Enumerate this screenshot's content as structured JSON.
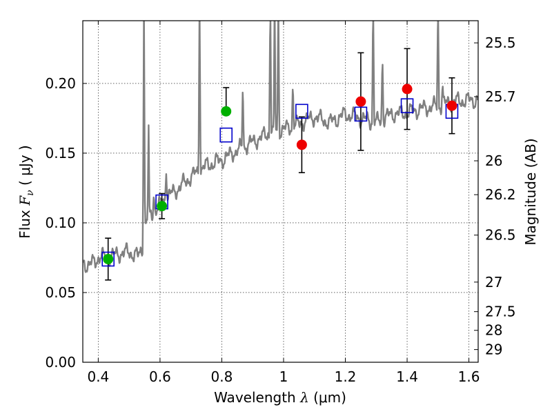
{
  "chart_data": {
    "type": "scatter",
    "xlabel": {
      "prefix": "Wavelength ",
      "symbol": "λ",
      "unit": " (μm)"
    },
    "ylabel": {
      "prefix": "Flux ",
      "symbol": "F",
      "subscript": "ν",
      "unit": " ( μJy )"
    },
    "y2label": "Magnitude (AB)",
    "xlim": [
      0.35,
      1.63
    ],
    "ylim": [
      0.0,
      0.245
    ],
    "grid": true,
    "xticks": [
      {
        "v": 0.4,
        "label": "0.4"
      },
      {
        "v": 0.6,
        "label": "0.6"
      },
      {
        "v": 0.8,
        "label": "0.8"
      },
      {
        "v": 1.0,
        "label": "1"
      },
      {
        "v": 1.2,
        "label": "1.2"
      },
      {
        "v": 1.4,
        "label": "1.4"
      },
      {
        "v": 1.6,
        "label": "1.6"
      }
    ],
    "yticks": [
      {
        "v": 0.0,
        "label": "0.00"
      },
      {
        "v": 0.05,
        "label": "0.05"
      },
      {
        "v": 0.1,
        "label": "0.10"
      },
      {
        "v": 0.15,
        "label": "0.15"
      },
      {
        "v": 0.2,
        "label": "0.20"
      }
    ],
    "magnitude_ticks": [
      {
        "label": "25.5",
        "flux": 0.2291
      },
      {
        "label": "25.7",
        "flux": 0.1905
      },
      {
        "label": "26",
        "flux": 0.1445
      },
      {
        "label": "26.2",
        "flux": 0.1202
      },
      {
        "label": "26.5",
        "flux": 0.0912
      },
      {
        "label": "27",
        "flux": 0.0575
      },
      {
        "label": "27.5",
        "flux": 0.0363
      },
      {
        "label": "28",
        "flux": 0.0229
      },
      {
        "label": "29",
        "flux": 0.0091
      }
    ],
    "sed_model": {
      "color": "#808080",
      "continuum": [
        [
          0.35,
          0.072
        ],
        [
          0.37,
          0.069
        ],
        [
          0.4,
          0.075
        ],
        [
          0.44,
          0.076
        ],
        [
          0.47,
          0.078
        ],
        [
          0.5,
          0.079
        ],
        [
          0.53,
          0.076
        ],
        [
          0.545,
          0.083
        ],
        [
          0.55,
          0.098
        ],
        [
          0.57,
          0.105
        ],
        [
          0.6,
          0.113
        ],
        [
          0.62,
          0.118
        ],
        [
          0.65,
          0.123
        ],
        [
          0.7,
          0.133
        ],
        [
          0.75,
          0.141
        ],
        [
          0.8,
          0.145
        ],
        [
          0.85,
          0.152
        ],
        [
          0.9,
          0.158
        ],
        [
          0.95,
          0.164
        ],
        [
          1.0,
          0.167
        ],
        [
          1.05,
          0.171
        ],
        [
          1.1,
          0.176
        ],
        [
          1.15,
          0.172
        ],
        [
          1.2,
          0.178
        ],
        [
          1.25,
          0.175
        ],
        [
          1.3,
          0.172
        ],
        [
          1.35,
          0.178
        ],
        [
          1.4,
          0.179
        ],
        [
          1.45,
          0.182
        ],
        [
          1.5,
          0.184
        ],
        [
          1.55,
          0.187
        ],
        [
          1.6,
          0.188
        ],
        [
          1.63,
          0.188
        ]
      ],
      "emission_lines": [
        {
          "x": 0.548,
          "peak": 0.26
        },
        {
          "x": 0.563,
          "peak": 0.17
        },
        {
          "x": 0.58,
          "peak": 0.12
        },
        {
          "x": 0.62,
          "peak": 0.135
        },
        {
          "x": 0.728,
          "peak": 0.26
        },
        {
          "x": 0.782,
          "peak": 0.15
        },
        {
          "x": 0.868,
          "peak": 0.2
        },
        {
          "x": 0.957,
          "peak": 0.26
        },
        {
          "x": 0.971,
          "peak": 0.26
        },
        {
          "x": 0.983,
          "peak": 0.26
        },
        {
          "x": 1.03,
          "peak": 0.2
        },
        {
          "x": 1.29,
          "peak": 0.26
        },
        {
          "x": 1.32,
          "peak": 0.22
        },
        {
          "x": 1.5,
          "peak": 0.26
        },
        {
          "x": 1.515,
          "peak": 0.2
        }
      ]
    },
    "model_photometry": {
      "marker": "open-square",
      "color": "#0000cc",
      "points": [
        {
          "x": 0.432,
          "y": 0.074
        },
        {
          "x": 0.606,
          "y": 0.115
        },
        {
          "x": 0.814,
          "y": 0.163
        },
        {
          "x": 1.059,
          "y": 0.18
        },
        {
          "x": 1.25,
          "y": 0.178
        },
        {
          "x": 1.4,
          "y": 0.184
        },
        {
          "x": 1.545,
          "y": 0.18
        }
      ]
    },
    "observed_detections": {
      "marker": "filled-circle",
      "color": "#00b000",
      "points": [
        {
          "x": 0.432,
          "y": 0.074,
          "err_low": 0.059,
          "err_high": 0.089
        },
        {
          "x": 0.606,
          "y": 0.112,
          "err_low": 0.103,
          "err_high": 0.121
        },
        {
          "x": 0.814,
          "y": 0.18,
          "err_low": 0.18,
          "err_high": 0.197
        }
      ]
    },
    "observed_other": {
      "marker": "filled-circle",
      "color": "#ee0000",
      "points": [
        {
          "x": 1.059,
          "y": 0.156,
          "err_low": 0.136,
          "err_high": 0.176
        },
        {
          "x": 1.25,
          "y": 0.187,
          "err_low": 0.152,
          "err_high": 0.222
        },
        {
          "x": 1.4,
          "y": 0.196,
          "err_low": 0.167,
          "err_high": 0.225
        },
        {
          "x": 1.545,
          "y": 0.184,
          "err_low": 0.164,
          "err_high": 0.204
        }
      ]
    }
  }
}
